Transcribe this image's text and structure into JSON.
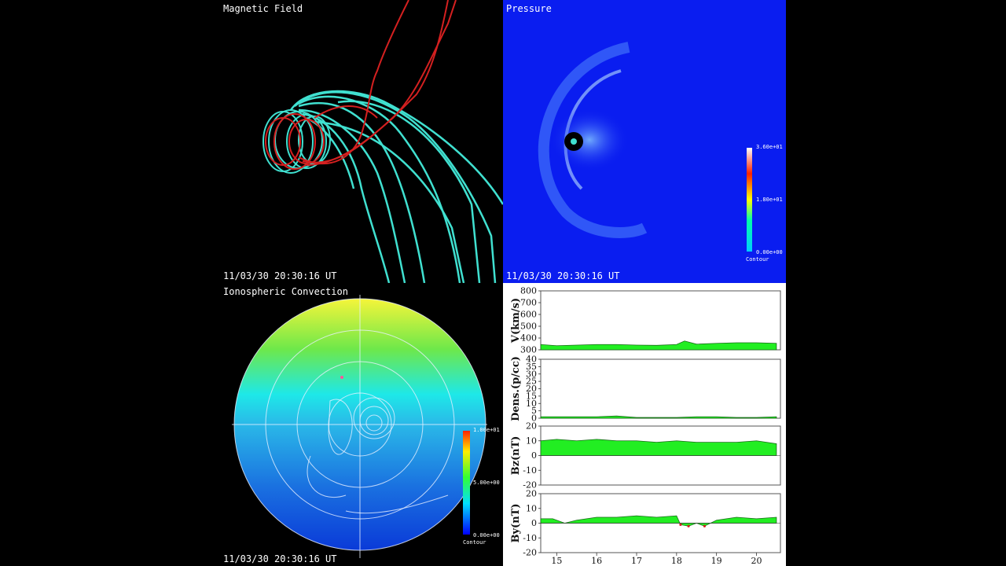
{
  "panels": {
    "magnetic": {
      "title": "Magnetic Field",
      "timestamp": "11/03/30 20:30:16 UT"
    },
    "pressure": {
      "title": "Pressure",
      "timestamp": "11/03/30 20:30:16 UT",
      "colorbar": {
        "max": "3.60e+01",
        "mid": "1.80e+01",
        "min": "0.00e+00",
        "label": "Contour"
      }
    },
    "ionosphere": {
      "title": "Ionospheric Convection",
      "timestamp": "11/03/30 20:30:16 UT",
      "colorbar": {
        "max": "1.00e+01",
        "mid": "5.00e+00",
        "min": "0.00e+00",
        "label": "Contour"
      }
    }
  },
  "colors": {
    "cyan": "#40e0d0",
    "red": "#d42020",
    "fill": "#22ee22",
    "pressure_bg": "#0a1df0"
  },
  "chart_data": [
    {
      "type": "area",
      "ylabel": "V(km/s)",
      "ylim": [
        300,
        800
      ],
      "yticks": [
        300,
        400,
        500,
        600,
        700,
        800
      ],
      "x": [
        14.6,
        15,
        15.5,
        16,
        16.5,
        17,
        17.5,
        18,
        18.2,
        18.5,
        19,
        19.5,
        20,
        20.5
      ],
      "values": [
        345,
        335,
        340,
        345,
        345,
        340,
        338,
        345,
        375,
        348,
        355,
        360,
        360,
        355
      ]
    },
    {
      "type": "area",
      "ylabel": "Dens.(p/cc)",
      "ylim": [
        0,
        40
      ],
      "yticks": [
        0,
        5,
        10,
        15,
        20,
        25,
        30,
        35,
        40
      ],
      "x": [
        14.6,
        15,
        15.5,
        16,
        16.5,
        17,
        17.5,
        18,
        18.5,
        19,
        19.5,
        20,
        20.5
      ],
      "values": [
        1,
        1,
        1,
        1,
        1.5,
        0.5,
        0.5,
        0.5,
        1,
        1,
        0.5,
        0.5,
        1
      ]
    },
    {
      "type": "area",
      "ylabel": "Bz(nT)",
      "ylim": [
        -20,
        20
      ],
      "yticks": [
        -20,
        -10,
        0,
        10,
        20
      ],
      "x": [
        14.6,
        15,
        15.5,
        16,
        16.5,
        17,
        17.5,
        18,
        18.5,
        19,
        19.5,
        20,
        20.5
      ],
      "values": [
        10,
        11,
        10,
        11,
        10,
        10,
        9,
        10,
        9,
        9,
        9,
        10,
        8
      ]
    },
    {
      "type": "area",
      "ylabel": "By(nT)",
      "ylim": [
        -20,
        20
      ],
      "yticks": [
        -20,
        -10,
        0,
        10,
        20
      ],
      "x": [
        14.6,
        14.9,
        15.2,
        15.5,
        16,
        16.5,
        17,
        17.5,
        18,
        18.1,
        18.3,
        18.5,
        18.7,
        19,
        19.5,
        20,
        20.5
      ],
      "values": [
        3,
        3,
        0,
        2,
        4,
        4,
        5,
        4,
        5,
        -1,
        -2,
        0,
        -2,
        2,
        4,
        3,
        4
      ]
    }
  ],
  "xaxis": {
    "ticks": [
      15,
      16,
      17,
      18,
      19,
      20
    ],
    "xlim": [
      14.6,
      20.6
    ]
  }
}
